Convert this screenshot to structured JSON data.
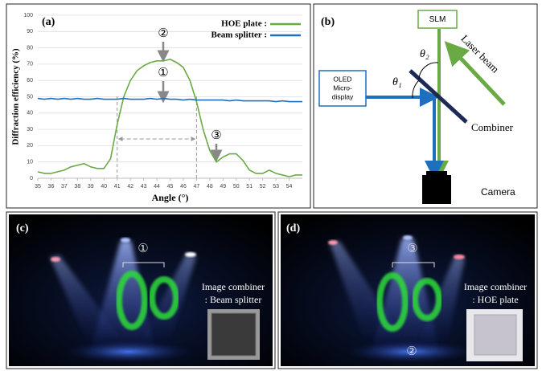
{
  "chart_data": {
    "type": "line",
    "panel_label": "(a)",
    "xlabel": "Angle (°)",
    "ylabel": "Diffraction efficiency (%)",
    "x": [
      35,
      35.5,
      36,
      36.5,
      37,
      37.5,
      38,
      38.5,
      39,
      39.5,
      40,
      40.5,
      41,
      41.5,
      42,
      42.5,
      43,
      43.5,
      44,
      44.5,
      45,
      45.5,
      46,
      46.5,
      47,
      47.5,
      48,
      48.5,
      49,
      49.5,
      50,
      50.5,
      51,
      51.5,
      52,
      52.5,
      53,
      53.5,
      54,
      54.5,
      55
    ],
    "series": [
      {
        "name": "HOE plate :",
        "color": "#6aaa45",
        "values": [
          4,
          3,
          3,
          4,
          5,
          7,
          8,
          9,
          7,
          6,
          6,
          12,
          33,
          50,
          60,
          66,
          69,
          71,
          72,
          72,
          73,
          71,
          68,
          60,
          47,
          30,
          17,
          10,
          13,
          15,
          15,
          11,
          5,
          3,
          3,
          5,
          3,
          2,
          1,
          2,
          2
        ]
      },
      {
        "name": "Beam splitter :",
        "color": "#1f6fbf",
        "values": [
          49,
          48.5,
          49,
          48.5,
          49,
          48.5,
          49,
          48.5,
          48.5,
          49,
          48.5,
          48.5,
          48.5,
          49,
          48.5,
          48.5,
          48.5,
          49,
          48.5,
          49,
          48.5,
          48.5,
          48,
          48.5,
          48,
          48,
          48,
          48,
          48,
          47.5,
          48,
          47.5,
          47.5,
          47.5,
          47.5,
          47.5,
          47,
          47.5,
          47,
          47,
          47
        ]
      }
    ],
    "annotations": [
      "②",
      "①",
      "③"
    ],
    "xlim": [
      35,
      55
    ],
    "xticks": [
      35,
      36,
      37,
      38,
      39,
      40,
      41,
      42,
      43,
      44,
      45,
      46,
      47,
      48,
      49,
      50,
      51,
      52,
      53,
      54
    ],
    "ylim": [
      0,
      100
    ],
    "yticks": [
      0,
      10,
      20,
      30,
      40,
      50,
      60,
      70,
      80,
      90,
      100
    ],
    "grid": true
  },
  "diagram": {
    "panel_label": "(b)",
    "slm": "SLM",
    "laser": "Laser beam",
    "oled": [
      "OLED",
      "Micro-",
      "display"
    ],
    "theta_2": "θ₂",
    "theta_1": "θ₁",
    "combiner": "Combiner",
    "camera": "Camera"
  },
  "photos": [
    {
      "panel_label": "(c)",
      "marker": "①",
      "caption": [
        "Image combiner",
        ": Beam splitter"
      ]
    },
    {
      "panel_label": "(d)",
      "marker": "③",
      "caption": [
        "Image combiner",
        ": HOE plate"
      ],
      "bottom_marker": "②"
    }
  ]
}
